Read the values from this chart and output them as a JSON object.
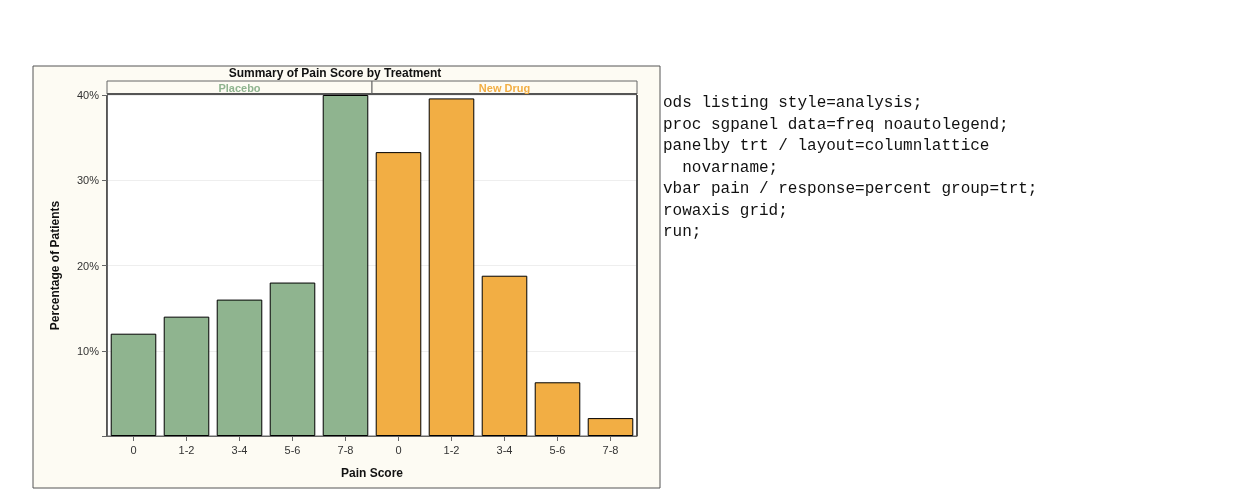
{
  "chart_data": {
    "type": "bar",
    "title": "Summary of Pain Score by Treatment",
    "xlabel": "Pain Score",
    "ylabel": "Percentage of Patients",
    "categories": [
      "0",
      "1-2",
      "3-4",
      "5-6",
      "7-8",
      "0",
      "1-2",
      "3-4",
      "5-6",
      "7-8"
    ],
    "series": [
      {
        "name": "Placebo",
        "color": "#8fb48f",
        "values": [
          12,
          14,
          16,
          18,
          40,
          null,
          null,
          null,
          null,
          null
        ]
      },
      {
        "name": "New Drug",
        "color": "#f2ae44",
        "values": [
          null,
          null,
          null,
          null,
          null,
          33.3,
          39.6,
          18.8,
          6.3,
          2.1
        ]
      }
    ],
    "ylim": [
      0,
      40
    ],
    "yticks": [
      {
        "value": 0,
        "label": null
      },
      {
        "value": 10,
        "label": "10%"
      },
      {
        "value": 20,
        "label": "20%"
      },
      {
        "value": 30,
        "label": "30%"
      },
      {
        "value": 40,
        "label": "40%"
      }
    ],
    "grid": "y",
    "legend": false,
    "annotations": [
      "ods listing style=analysis;",
      "proc sgpanel data=freq noautolegend;",
      "panelby trt / layout=columnlattice",
      "  novarname;",
      "vbar pain / response=percent group=trt;",
      "rowaxis grid;",
      "run;"
    ]
  }
}
